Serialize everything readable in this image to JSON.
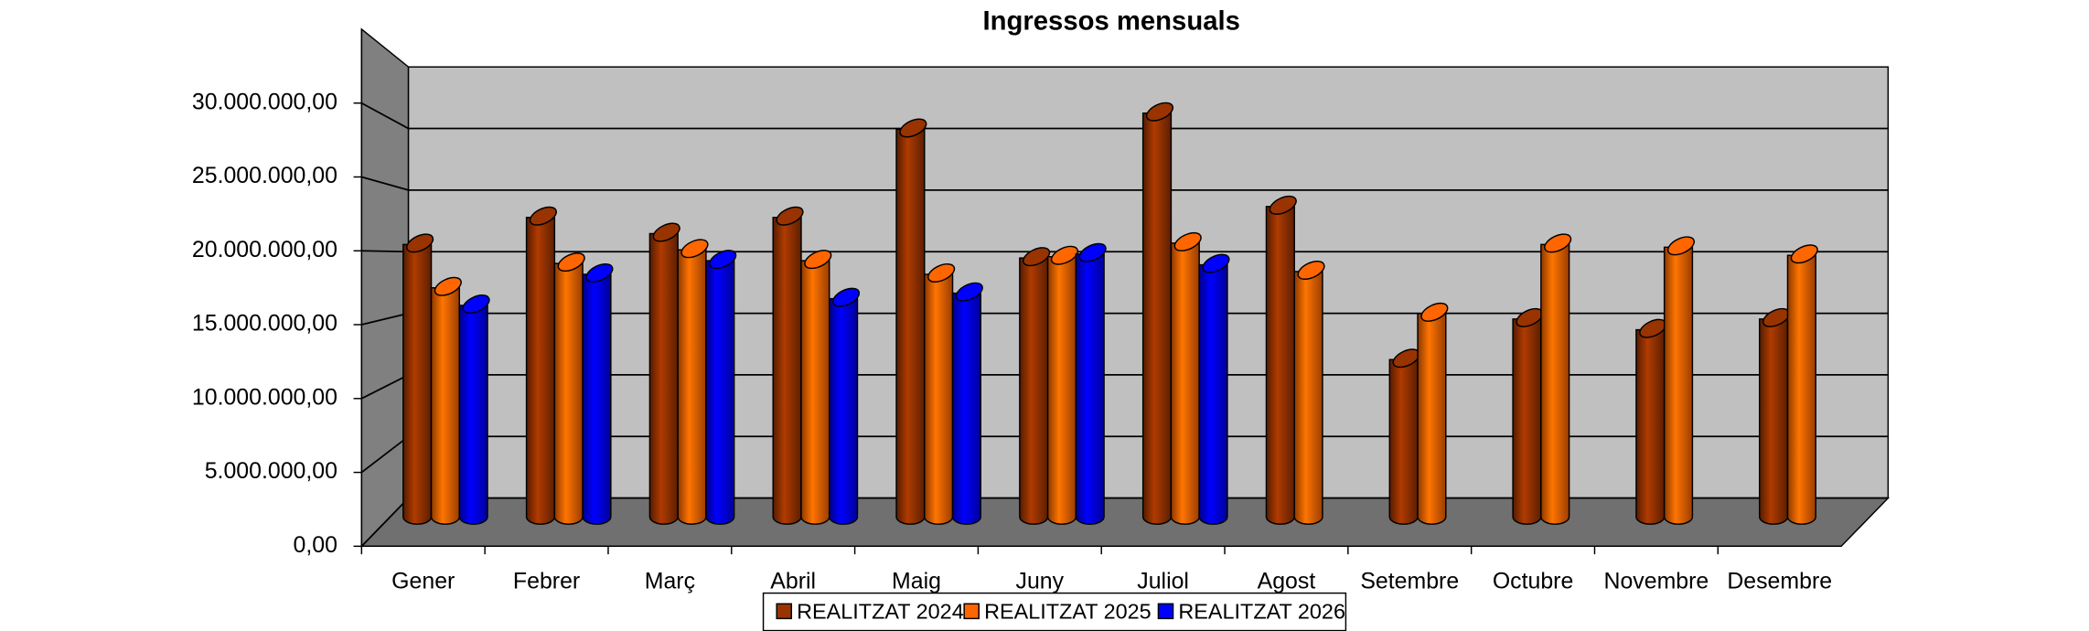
{
  "chart_data": {
    "type": "bar3d",
    "title": "Ingressos mensuals",
    "categories": [
      "Gener",
      "Febrer",
      "Març",
      "Abril",
      "Maig",
      "Juny",
      "Juliol",
      "Agost",
      "Setembre",
      "Octubre",
      "Novembre",
      "Desembre"
    ],
    "series": [
      {
        "name": "REALITZAT 2024",
        "color": "#993300",
        "values": [
          20500000,
          22500000,
          21300000,
          22500000,
          29000000,
          19500000,
          30200000,
          23300000,
          12000000,
          15000000,
          14200000,
          15000000
        ]
      },
      {
        "name": "REALITZAT 2025",
        "color": "#ff6600",
        "values": [
          17300000,
          19100000,
          20100000,
          19300000,
          18300000,
          19600000,
          20600000,
          18500000,
          15400000,
          20500000,
          20300000,
          19700000
        ]
      },
      {
        "name": "REALITZAT 2026",
        "color": "#0000ff",
        "values": [
          16000000,
          18300000,
          19300000,
          16500000,
          16900000,
          19800000,
          19000000,
          null,
          null,
          null,
          null,
          null
        ]
      }
    ],
    "ylim": [
      0,
      35000000
    ],
    "yticks": [
      {
        "value": 0,
        "label": "0,00"
      },
      {
        "value": 5000000,
        "label": "5.000.000,00"
      },
      {
        "value": 10000000,
        "label": "10.000.000,00"
      },
      {
        "value": 15000000,
        "label": "15.000.000,00"
      },
      {
        "value": 20000000,
        "label": "20.000.000,00"
      },
      {
        "value": 25000000,
        "label": "25.000.000,00"
      },
      {
        "value": 30000000,
        "label": "30.000.000,00"
      }
    ],
    "grid": true,
    "legend": "bottom"
  }
}
